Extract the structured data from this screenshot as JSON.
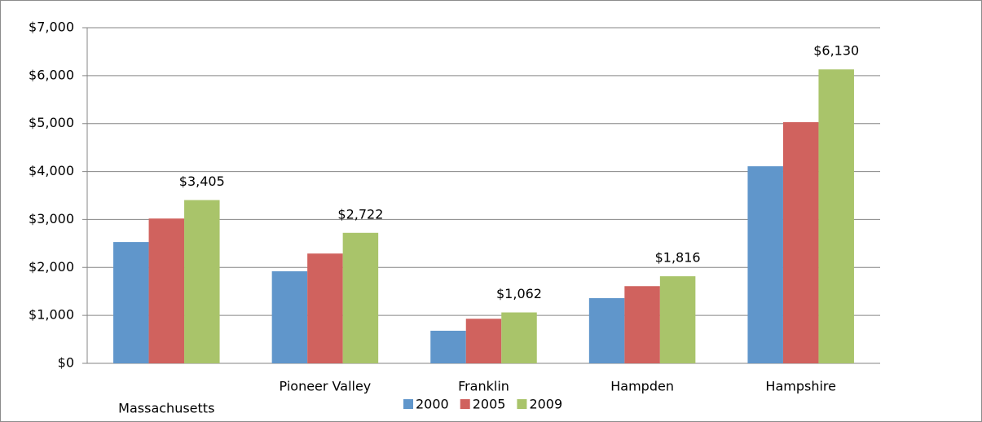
{
  "chart_data": {
    "type": "bar",
    "categories": [
      "Massachusetts",
      "Pioneer Valley",
      "Franklin",
      "Hampden",
      "Hampshire"
    ],
    "series": [
      {
        "name": "2000",
        "color": "#6096CB",
        "values": [
          2530,
          1920,
          680,
          1360,
          4110
        ]
      },
      {
        "name": "2005",
        "color": "#D0625E",
        "values": [
          3020,
          2290,
          930,
          1610,
          5030
        ]
      },
      {
        "name": "2009",
        "color": "#A9C46A",
        "values": [
          3405,
          2722,
          1062,
          1816,
          6130
        ],
        "value_labels": [
          "$3,405",
          "$2,722",
          "$1,062",
          "$1,816",
          "$6,130"
        ]
      }
    ],
    "ylim": [
      0,
      7000
    ],
    "yticks": [
      {
        "value": 0,
        "label": "$0"
      },
      {
        "value": 1000,
        "label": "$1,000"
      },
      {
        "value": 2000,
        "label": "$2,000"
      },
      {
        "value": 3000,
        "label": "$3,000"
      },
      {
        "value": 4000,
        "label": "$4,000"
      },
      {
        "value": 5000,
        "label": "$5,000"
      },
      {
        "value": 6000,
        "label": "$6,000"
      },
      {
        "value": 7000,
        "label": "$7,000"
      }
    ],
    "grid": true,
    "legend": "bottom"
  }
}
